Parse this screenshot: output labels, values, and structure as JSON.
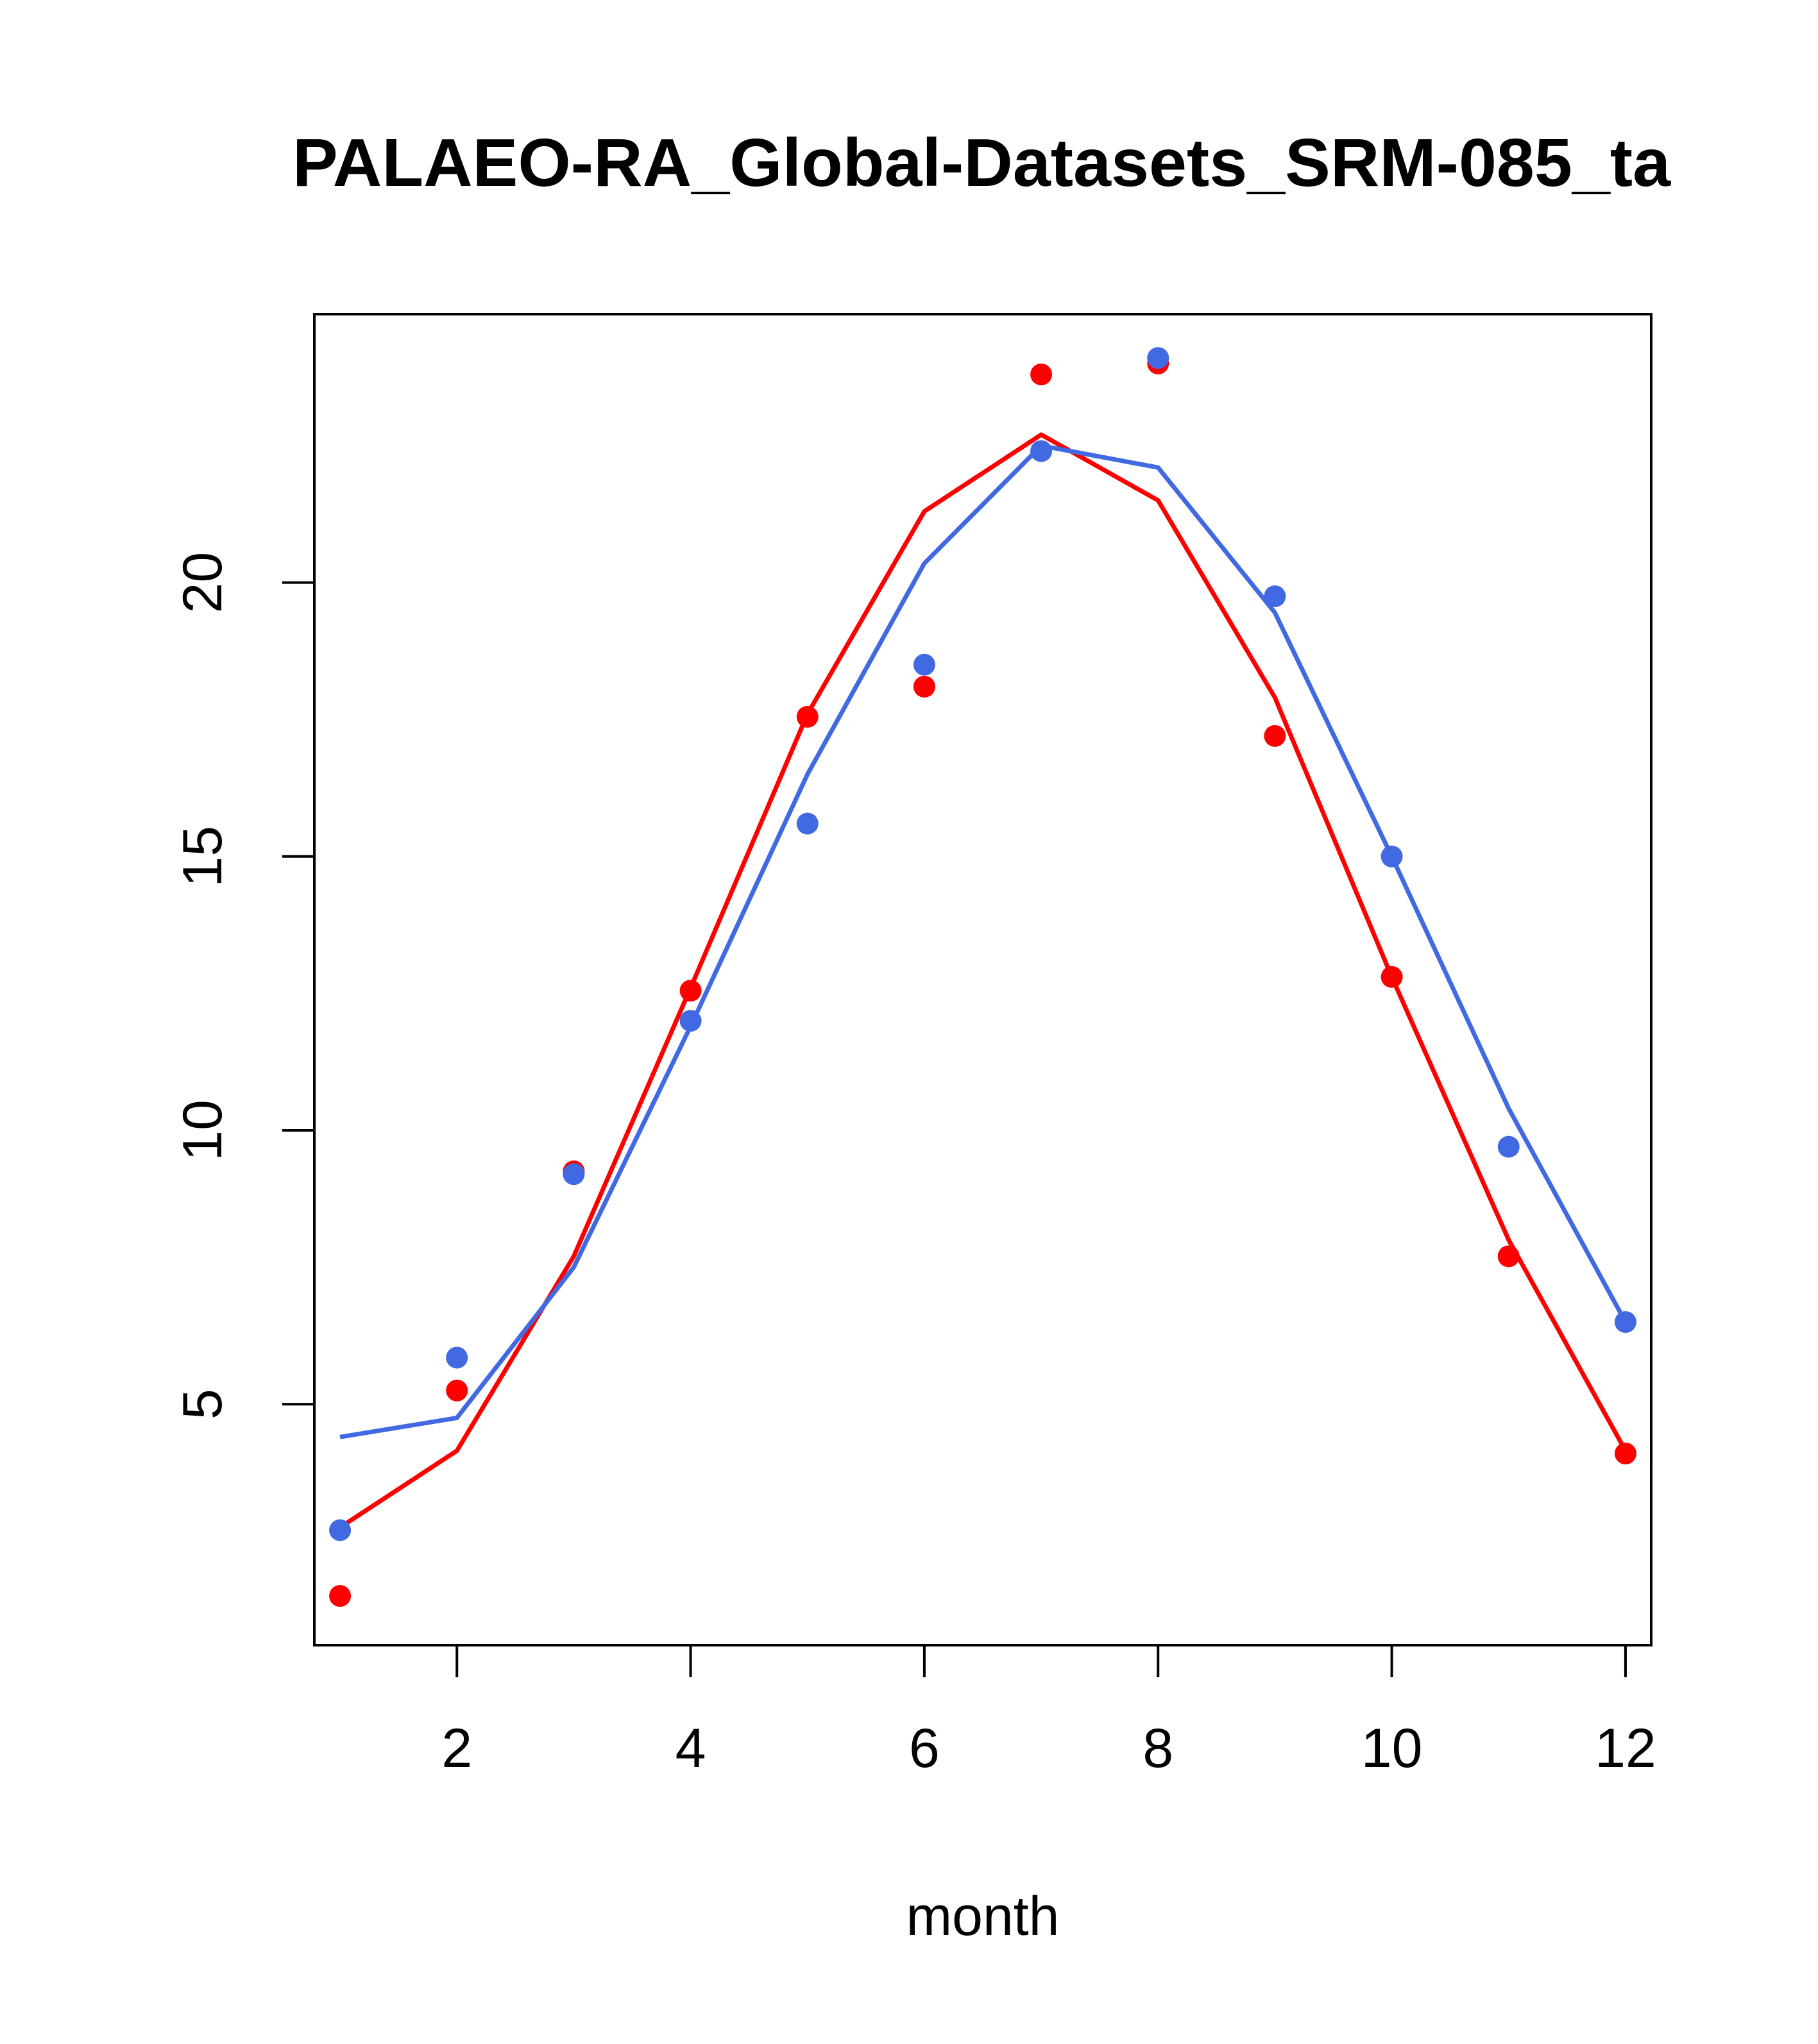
{
  "chart_data": {
    "type": "line",
    "title": "PALAEO-RA_Global-Datasets_SRM-085_ta",
    "xlabel": "month",
    "ylabel": "",
    "x": [
      1,
      2,
      3,
      4,
      5,
      6,
      7,
      8,
      9,
      10,
      11,
      12
    ],
    "xlim": [
      0.78,
      12.22
    ],
    "ylim": [
      0.6,
      24.9
    ],
    "xticks": [
      2,
      4,
      6,
      8,
      10,
      12
    ],
    "yticks": [
      5,
      10,
      15,
      20
    ],
    "grid": false,
    "legend": "none",
    "series": [
      {
        "name": "red points",
        "kind": "points",
        "color": "#ff0000",
        "values": [
          1.5,
          5.25,
          9.25,
          12.55,
          17.55,
          18.1,
          23.8,
          24.0,
          17.2,
          12.8,
          7.7,
          4.1
        ]
      },
      {
        "name": "red line",
        "kind": "line",
        "color": "#ff0000",
        "values": [
          2.75,
          4.15,
          7.7,
          12.6,
          17.6,
          21.3,
          22.7,
          21.5,
          17.9,
          12.8,
          8.0,
          4.15
        ]
      },
      {
        "name": "blue points",
        "kind": "points",
        "color": "#4169e1",
        "values": [
          2.7,
          5.85,
          9.2,
          12.0,
          15.6,
          18.5,
          22.4,
          24.1,
          19.75,
          15.0,
          9.7,
          6.5
        ]
      },
      {
        "name": "blue line",
        "kind": "line",
        "color": "#4169e1",
        "values": [
          4.4,
          4.75,
          7.5,
          11.9,
          16.5,
          20.35,
          22.5,
          22.1,
          19.45,
          15.0,
          10.4,
          6.5
        ]
      }
    ]
  }
}
